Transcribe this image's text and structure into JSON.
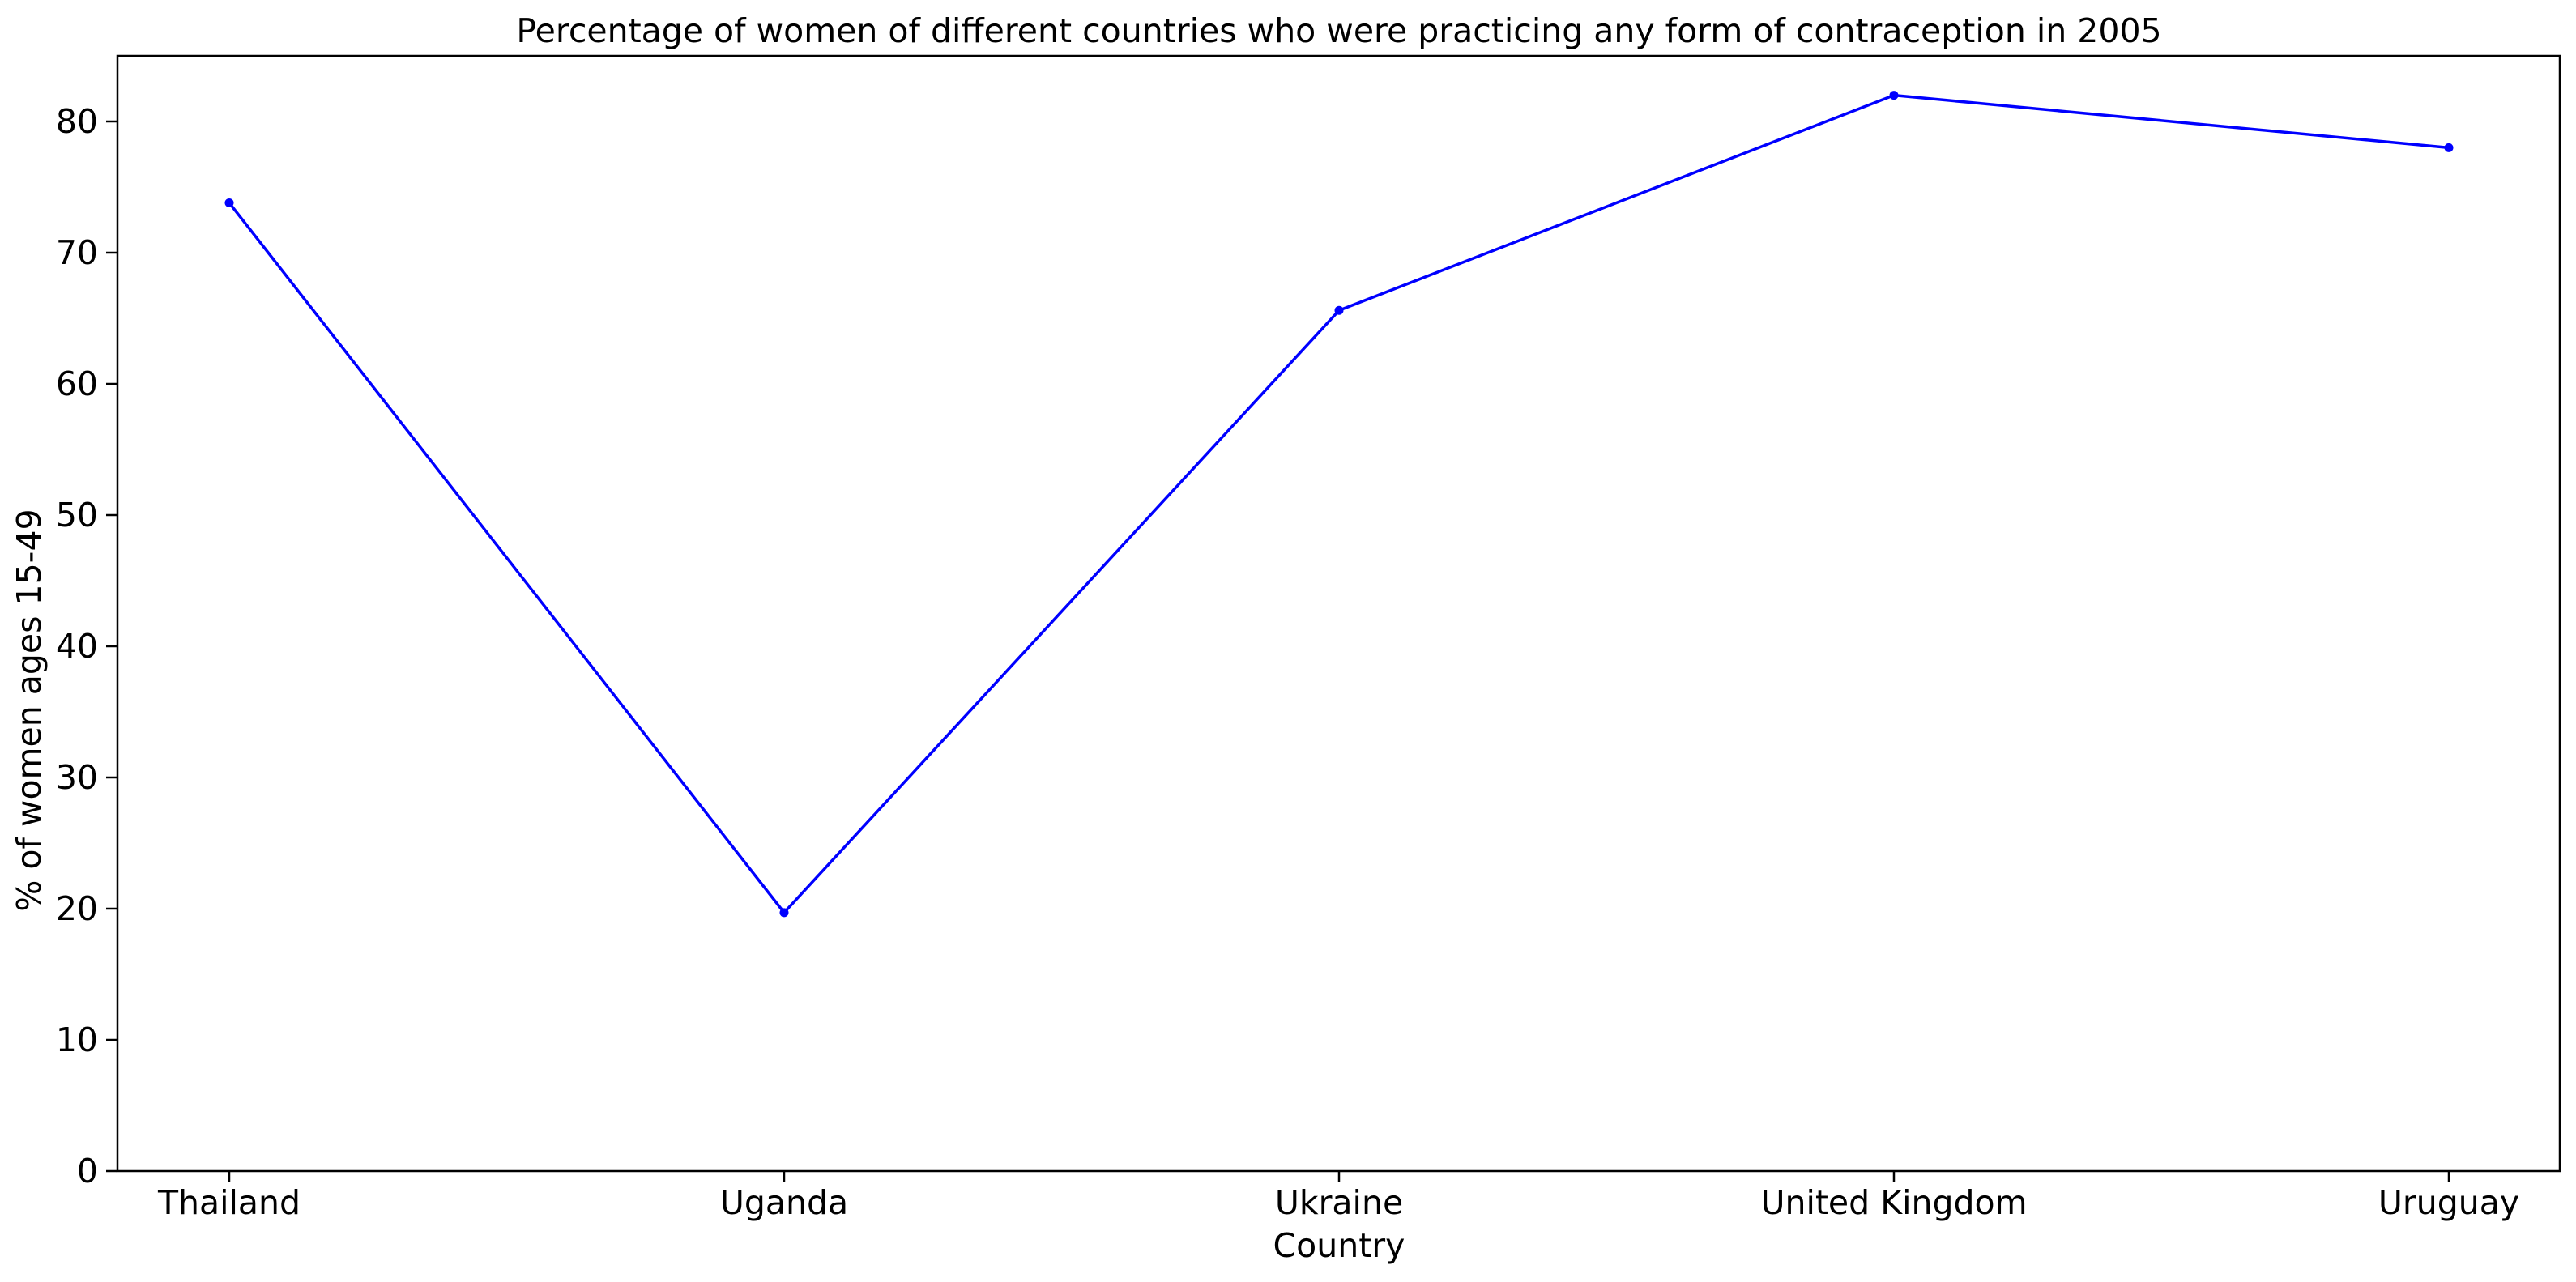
{
  "chart_data": {
    "type": "line",
    "title": "Percentage of women of different countries who were practicing any form of contraception in 2005",
    "xlabel": "Country",
    "ylabel": "% of women ages 15-49",
    "categories": [
      "Thailand",
      "Uganda",
      "Ukraine",
      "United Kingdom",
      "Uruguay"
    ],
    "series": [
      {
        "values": [
          73.8,
          19.7,
          65.6,
          82.0,
          78.0
        ],
        "color": "#0000ff",
        "marker": "circle"
      }
    ],
    "ylim": [
      0,
      85
    ],
    "yticks": [
      0,
      10,
      20,
      30,
      40,
      50,
      60,
      70,
      80
    ],
    "grid": false,
    "legend": "none"
  }
}
